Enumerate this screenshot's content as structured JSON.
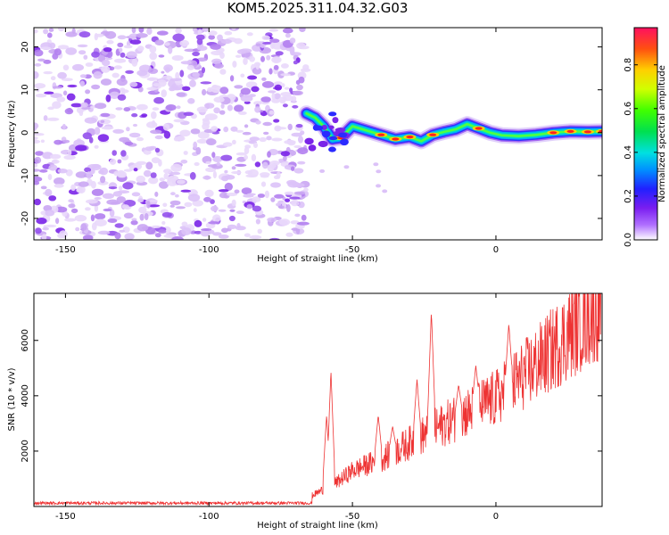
{
  "figure": {
    "title": "KOM5.2025.311.04.32.G03"
  },
  "chart_data": [
    {
      "type": "heatmap",
      "name": "spectrogram",
      "xlabel": "Height of straight line (km)",
      "ylabel": "Frequency (Hz)",
      "xlim": [
        -161,
        37
      ],
      "ylim": [
        -25,
        24.5
      ],
      "xticks": [
        -150,
        -100,
        -50,
        0
      ],
      "yticks": [
        -20,
        -10,
        0,
        10,
        20
      ],
      "noise_region": {
        "x": [
          -161,
          -66
        ],
        "y": [
          -25,
          24.5
        ]
      },
      "signal_track": {
        "x": [
          -66,
          -63,
          -60,
          -57,
          -54,
          -50,
          -45,
          -40,
          -35,
          -30,
          -26,
          -22,
          -18,
          -14,
          -10,
          -6,
          -2,
          2,
          8,
          14,
          20,
          26,
          32,
          37
        ],
        "y": [
          4.5,
          3.5,
          1.5,
          -1.5,
          -1.2,
          1.5,
          0.5,
          -0.5,
          -1.5,
          -1.0,
          -2.0,
          -0.5,
          0.2,
          0.8,
          2.0,
          1.0,
          0.0,
          -0.6,
          -0.8,
          -0.5,
          0.0,
          0.3,
          0.2,
          0.3
        ]
      },
      "colorbar": {
        "label": "Normalized spectral amplitude",
        "range": [
          0.0,
          0.97
        ],
        "ticks": [
          "0.0",
          "0.2",
          "0.4",
          "0.6",
          "0.8"
        ]
      }
    },
    {
      "type": "line",
      "name": "snr",
      "xlabel": "Height of straight line (km)",
      "ylabel": "SNR (10 * v/v)",
      "xlim": [
        -161,
        37
      ],
      "ylim": [
        0,
        7700
      ],
      "xticks": [
        -150,
        -100,
        -50,
        0
      ],
      "yticks": [
        2000,
        4000,
        6000
      ],
      "color": "#ee3333",
      "baseline_end_x": -64,
      "baseline_level": 100,
      "trend": {
        "x": [
          -64,
          -55,
          -50,
          -40,
          -25,
          -10,
          0,
          15,
          30,
          37
        ],
        "y": [
          400,
          900,
          1300,
          1700,
          2600,
          3400,
          3900,
          5200,
          6700,
          7300
        ]
      },
      "spikes": [
        {
          "x": -57.5,
          "y": 4900
        },
        {
          "x": -59,
          "y": 3300
        },
        {
          "x": -41,
          "y": 3300
        },
        {
          "x": -36,
          "y": 2900
        },
        {
          "x": -27.5,
          "y": 4600
        },
        {
          "x": -22.5,
          "y": 7050
        },
        {
          "x": -13,
          "y": 4400
        },
        {
          "x": -7,
          "y": 5100
        },
        {
          "x": 4.5,
          "y": 6600
        }
      ]
    }
  ]
}
